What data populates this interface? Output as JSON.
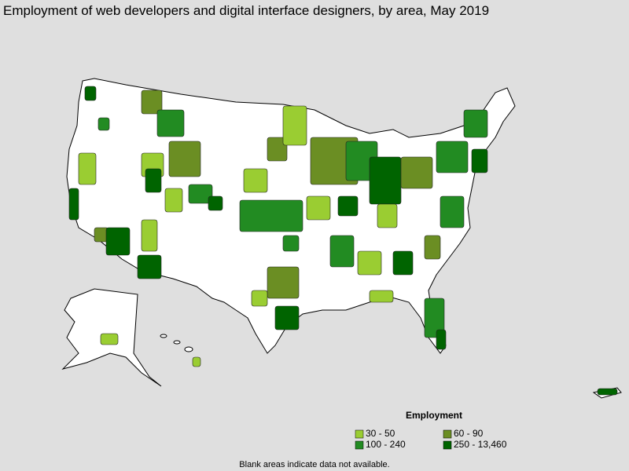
{
  "title": "Employment of web developers and digital interface designers, by area, May 2019",
  "legend": {
    "title": "Employment",
    "items": [
      {
        "label": "30 - 50",
        "color": "#9acd32"
      },
      {
        "label": "60 - 90",
        "color": "#6b8e23"
      },
      {
        "label": "100 - 240",
        "color": "#228b22"
      },
      {
        "label": "250 - 13,460",
        "color": "#006400"
      }
    ]
  },
  "footnote": "Blank areas indicate data not available."
}
